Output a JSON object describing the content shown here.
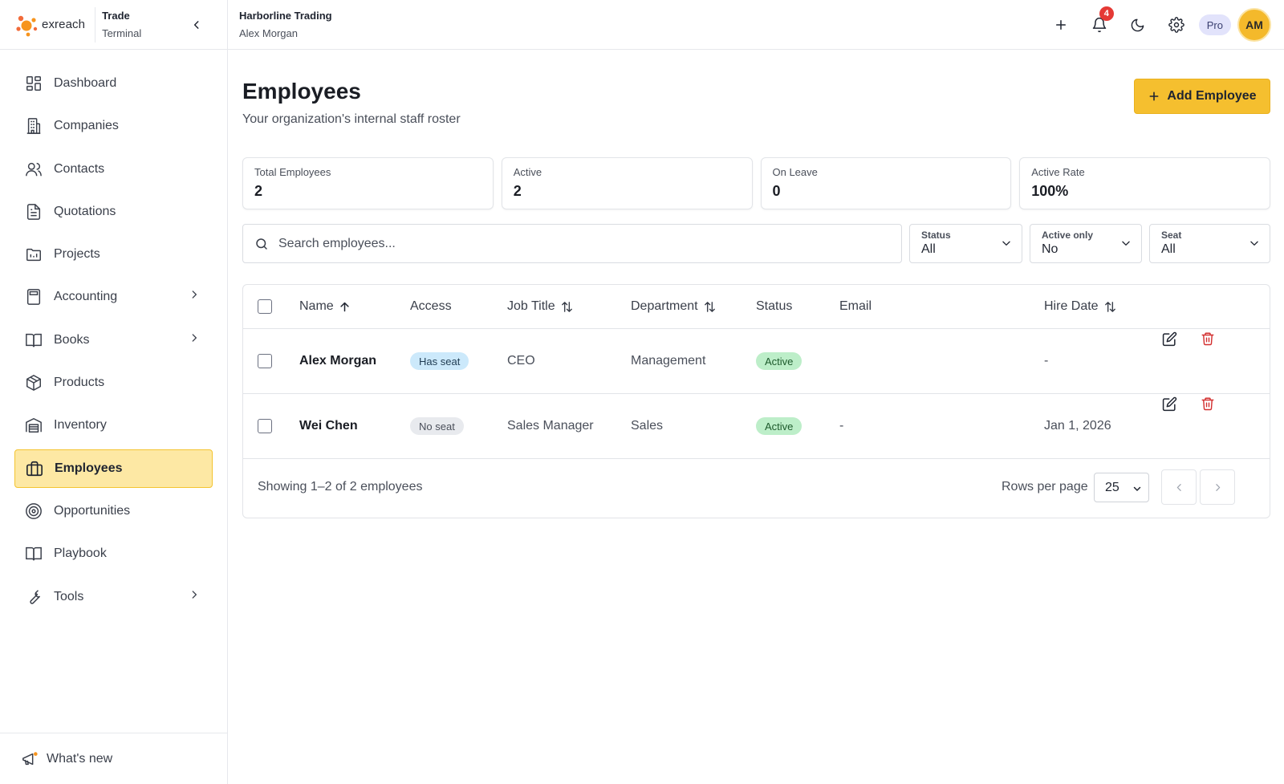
{
  "brand": {
    "logo_text": "exreach",
    "line1": "Trade",
    "line2": "Terminal"
  },
  "header": {
    "org_name": "Harborline Trading",
    "user_name": "Alex Morgan",
    "notif_count": "4",
    "plan": "Pro",
    "avatar_initials": "AM"
  },
  "sidebar": {
    "items": [
      {
        "label": "Dashboard",
        "icon": "dashboard-icon"
      },
      {
        "label": "Companies",
        "icon": "building-icon"
      },
      {
        "label": "Contacts",
        "icon": "users-icon"
      },
      {
        "label": "Quotations",
        "icon": "document-icon"
      },
      {
        "label": "Projects",
        "icon": "folder-chart-icon"
      },
      {
        "label": "Accounting",
        "icon": "calculator-icon",
        "expandable": true
      },
      {
        "label": "Books",
        "icon": "book-icon",
        "expandable": true
      },
      {
        "label": "Products",
        "icon": "package-icon"
      },
      {
        "label": "Inventory",
        "icon": "warehouse-icon"
      },
      {
        "label": "Employees",
        "icon": "briefcase-icon",
        "active": true
      },
      {
        "label": "Opportunities",
        "icon": "target-icon"
      },
      {
        "label": "Playbook",
        "icon": "book-open-icon"
      },
      {
        "label": "Tools",
        "icon": "wrench-icon",
        "expandable": true
      }
    ],
    "whats_new": "What's new"
  },
  "page": {
    "title": "Employees",
    "subtitle": "Your organization's internal staff roster",
    "add_button": "Add Employee"
  },
  "stats": [
    {
      "label": "Total Employees",
      "value": "2"
    },
    {
      "label": "Active",
      "value": "2"
    },
    {
      "label": "On Leave",
      "value": "0"
    },
    {
      "label": "Active Rate",
      "value": "100%"
    }
  ],
  "filters": {
    "search_placeholder": "Search employees...",
    "status": {
      "label": "Status",
      "value": "All"
    },
    "active_only": {
      "label": "Active only",
      "value": "No"
    },
    "seat": {
      "label": "Seat",
      "value": "All"
    }
  },
  "table": {
    "columns": [
      "Name",
      "Access",
      "Job Title",
      "Department",
      "Status",
      "Email",
      "Hire Date"
    ],
    "rows": [
      {
        "name": "Alex Morgan",
        "access": "Has seat",
        "job_title": "CEO",
        "department": "Management",
        "status": "Active",
        "email": "",
        "hire_date": "-"
      },
      {
        "name": "Wei Chen",
        "access": "No seat",
        "job_title": "Sales Manager",
        "department": "Sales",
        "status": "Active",
        "email": "-",
        "hire_date": "Jan 1, 2026"
      }
    ]
  },
  "pagination": {
    "showing": "Showing 1–2 of 2 employees",
    "rows_per_page_label": "Rows per page",
    "rows_per_page": "25"
  },
  "colors": {
    "accent": "#f5bf2f",
    "active_nav_bg": "#fde8a4",
    "badge_red": "#e53935",
    "seat_blue": "#cce9fb",
    "status_green": "#bdeec9"
  }
}
